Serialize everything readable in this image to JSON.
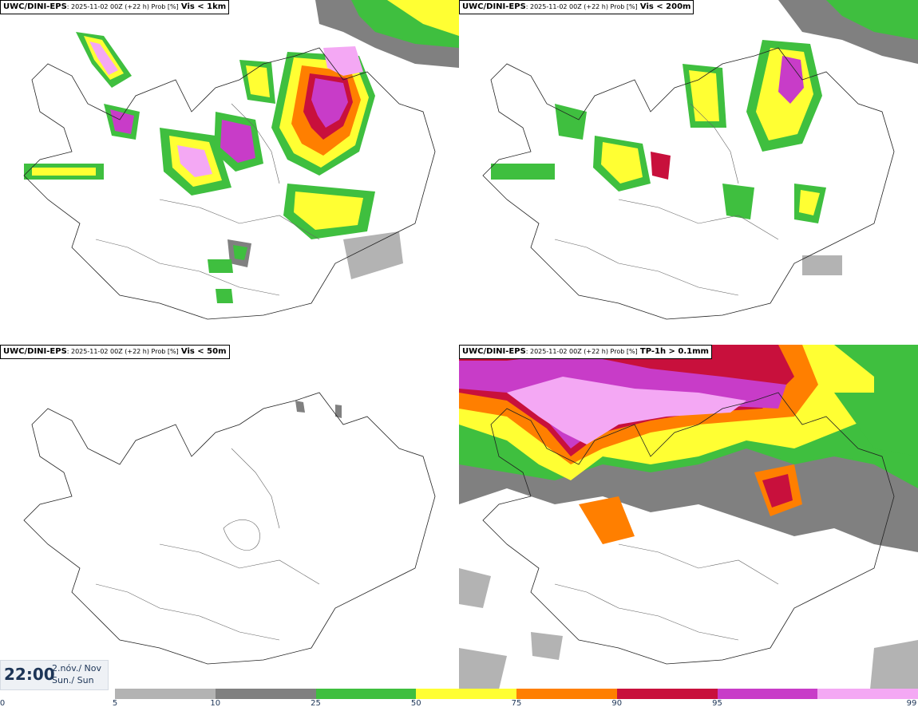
{
  "panels": [
    {
      "model": "UWC/DINI-EPS",
      "meta": ": 2025-11-02 00Z (+22 h) Prob [%]",
      "var": "Vis < 1km"
    },
    {
      "model": "UWC/DINI-EPS",
      "meta": ": 2025-11-02 00Z (+22 h) Prob [%]",
      "var": "Vis < 200m"
    },
    {
      "model": "UWC/DINI-EPS",
      "meta": ": 2025-11-02 00Z (+22 h) Prob [%]",
      "var": "Vis < 50m"
    },
    {
      "model": "UWC/DINI-EPS",
      "meta": ": 2025-11-02 00Z (+22 h) Prob [%]",
      "var": "TP-1h > 0.1mm"
    }
  ],
  "time": {
    "clock": "22:00",
    "date": "2.nóv./ Nov",
    "weekday": "Sun./ Sun"
  },
  "legend": {
    "ticks": [
      "0",
      "5",
      "10",
      "25",
      "50",
      "75",
      "90",
      "95",
      "99"
    ],
    "colors": [
      "#b3b3b3",
      "#808080",
      "#3fbf3f",
      "#ffff33",
      "#ff7f00",
      "#c8103c",
      "#c83cc8",
      "#f4a8f4"
    ]
  }
}
